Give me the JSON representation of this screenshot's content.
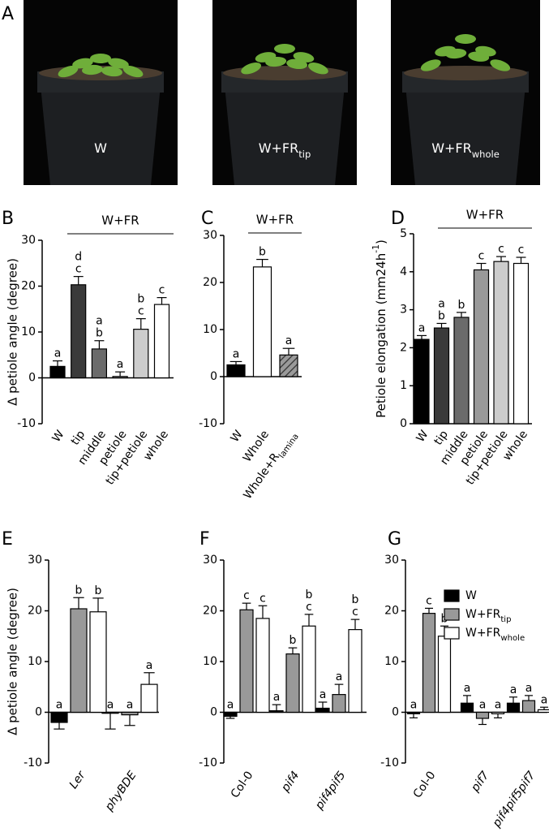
{
  "panel_a": {
    "label": "A",
    "photos": [
      {
        "text": "W"
      },
      {
        "text": "W+FR",
        "sub": "tip"
      },
      {
        "text": "W+FR",
        "sub": "whole"
      }
    ]
  },
  "chart_data": [
    {
      "panel": "B",
      "type": "bar",
      "y_label": "Δ petiole angle (degree)",
      "group_label": "W+FR",
      "categories": [
        "W",
        "tip",
        "middle",
        "petiole",
        "tip+petiole",
        "whole"
      ],
      "ylim": [
        -10,
        30
      ],
      "yticks": [
        -10,
        0,
        10,
        20,
        30
      ],
      "series": [
        {
          "values": [
            2.5,
            20.3,
            6.3,
            0.3,
            10.6,
            16
          ],
          "errors": [
            1.2,
            1.8,
            1.8,
            1.0,
            2.3,
            1.5
          ],
          "colors": [
            "#000000",
            "#3a3a3a",
            "#6b6b6b",
            "#999999",
            "#cccccc",
            "#ffffff"
          ],
          "letters": [
            [
              "a"
            ],
            [
              "d",
              "c"
            ],
            [
              "a",
              "b"
            ],
            [
              "a"
            ],
            [
              "b",
              "c"
            ],
            [
              "c"
            ]
          ]
        }
      ]
    },
    {
      "panel": "C",
      "type": "bar",
      "group_label": "W+FR",
      "categories": [
        "W",
        "Whole",
        {
          "text": "Whole+R",
          "sub": "lamina"
        }
      ],
      "ylim": [
        -10,
        30
      ],
      "yticks": [
        -10,
        0,
        10,
        20,
        30
      ],
      "series": [
        {
          "values": [
            2.5,
            23.3,
            4.6
          ],
          "errors": [
            0.7,
            1.6,
            1.4
          ],
          "colors": [
            "#000000",
            "#ffffff",
            "#999999"
          ],
          "hatched": [
            false,
            false,
            true
          ],
          "letters": [
            [
              "a"
            ],
            [
              "b"
            ],
            [
              "a"
            ]
          ]
        }
      ]
    },
    {
      "panel": "D",
      "type": "bar",
      "y_label": {
        "text": "Petiole elongation (mm24h",
        "sup": "-1",
        "tail": ")"
      },
      "group_label": "W+FR",
      "categories": [
        "W",
        "tip",
        "middle",
        "petiole",
        "tip+petiole",
        "whole"
      ],
      "ylim": [
        0,
        5
      ],
      "yticks": [
        0,
        1,
        2,
        3,
        4,
        5
      ],
      "series": [
        {
          "values": [
            2.22,
            2.52,
            2.8,
            4.05,
            4.27,
            4.22
          ],
          "errors": [
            0.1,
            0.12,
            0.13,
            0.17,
            0.13,
            0.16
          ],
          "colors": [
            "#000000",
            "#3a3a3a",
            "#6b6b6b",
            "#999999",
            "#cccccc",
            "#ffffff"
          ],
          "letters": [
            [
              "a"
            ],
            [
              "a",
              "b"
            ],
            [
              "b"
            ],
            [
              "c"
            ],
            [
              "c"
            ],
            [
              "c"
            ]
          ]
        }
      ]
    },
    {
      "panel": "E",
      "type": "bar",
      "y_label": "Δ petiole angle (degree)",
      "categories": [
        "Ler",
        "phyBDE"
      ],
      "ylim": [
        -10,
        30
      ],
      "yticks": [
        -10,
        0,
        10,
        20,
        30
      ],
      "series": [
        {
          "name": "W",
          "color": "#000000",
          "values": [
            -2,
            -0.2
          ],
          "errors": [
            1.3,
            3.1
          ],
          "letters": [
            [
              "a"
            ],
            [
              "a"
            ]
          ]
        },
        {
          "name": "W+FR",
          "name_sub": "tip",
          "color": "#999999",
          "values": [
            20.4,
            -0.5
          ],
          "errors": [
            2.2,
            2.1
          ],
          "letters": [
            [
              "b"
            ],
            [
              "a"
            ]
          ]
        },
        {
          "name": "W+FR",
          "name_sub": "whole",
          "color": "#ffffff",
          "values": [
            19.8,
            5.5
          ],
          "errors": [
            2.7,
            2.3
          ],
          "letters": [
            [
              "b"
            ],
            [
              "a"
            ]
          ]
        }
      ]
    },
    {
      "panel": "F",
      "type": "bar",
      "categories": [
        "Col-0",
        "pif4",
        "pif4pif5"
      ],
      "ylim": [
        -10,
        30
      ],
      "yticks": [
        -10,
        0,
        10,
        20,
        30
      ],
      "series": [
        {
          "name": "W",
          "color": "#000000",
          "values": [
            -0.8,
            0.3,
            0.8
          ],
          "errors": [
            0.4,
            1.2,
            1.2
          ],
          "letters": [
            [
              "a"
            ],
            [
              "a"
            ],
            [
              "a"
            ]
          ]
        },
        {
          "name": "W+FR",
          "name_sub": "tip",
          "color": "#999999",
          "values": [
            20.2,
            11.5,
            3.5
          ],
          "errors": [
            1.3,
            1.2,
            2.0
          ],
          "letters": [
            [
              "c"
            ],
            [
              "b"
            ],
            [
              "a"
            ]
          ]
        },
        {
          "name": "W+FR",
          "name_sub": "whole",
          "color": "#ffffff",
          "values": [
            18.5,
            17,
            16.3
          ],
          "errors": [
            2.5,
            2.3,
            2.0
          ],
          "letters": [
            [
              "c"
            ],
            [
              "b",
              "c"
            ],
            [
              "b",
              "c"
            ]
          ]
        }
      ]
    },
    {
      "panel": "G",
      "type": "bar",
      "legend": "top-right",
      "categories": [
        "Col-0",
        "pif7",
        "pif4pif5pif7"
      ],
      "ylim": [
        -10,
        30
      ],
      "yticks": [
        -10,
        0,
        10,
        20,
        30
      ],
      "series": [
        {
          "name": "W",
          "color": "#000000",
          "values": [
            -0.3,
            1.8,
            1.8
          ],
          "errors": [
            0.8,
            1.5,
            1.2
          ],
          "letters": [
            [
              "a"
            ],
            [
              "a"
            ],
            [
              "a"
            ]
          ]
        },
        {
          "name": "W+FR",
          "name_sub": "tip",
          "color": "#999999",
          "values": [
            19.5,
            -1.2,
            2.3
          ],
          "errors": [
            1.0,
            1.2,
            1.0
          ],
          "letters": [
            [
              "c"
            ],
            [
              "a"
            ],
            [
              "a"
            ]
          ]
        },
        {
          "name": "W+FR",
          "name_sub": "whole",
          "color": "#ffffff",
          "values": [
            15,
            -0.3,
            0.5
          ],
          "errors": [
            2.0,
            0.8,
            0.5
          ],
          "letters": [
            [
              "b"
            ],
            [
              "a"
            ],
            [
              "a"
            ]
          ]
        }
      ]
    }
  ]
}
